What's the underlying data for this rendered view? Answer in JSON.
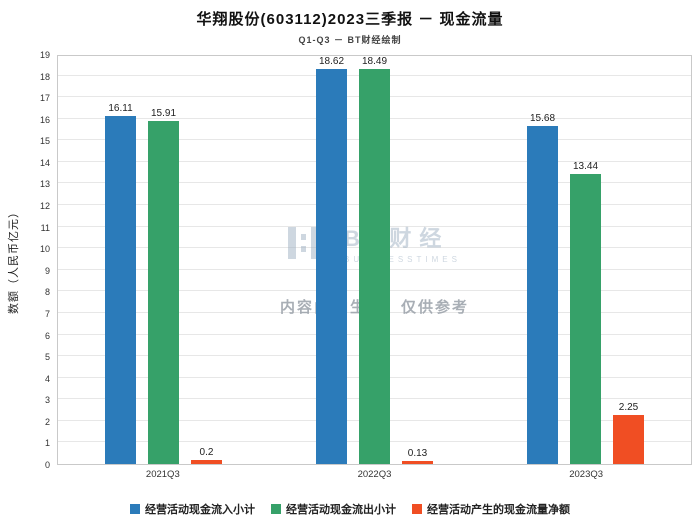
{
  "title": "华翔股份(603112)2023三季报 － 现金流量",
  "subtitle": "Q1-Q3 － BT财经绘制",
  "watermark": {
    "logo_text": "BT财经",
    "logo_sub": "BUSINESSTIMES",
    "disclaimer": "内容由AI生成，仅供参考"
  },
  "chart_data": {
    "type": "bar",
    "categories": [
      "2021Q3",
      "2022Q3",
      "2023Q3"
    ],
    "series": [
      {
        "name": "经营活动现金流入小计",
        "color": "#2b7bba",
        "values": [
          16.11,
          18.62,
          15.68
        ]
      },
      {
        "name": "经营活动现金流出小计",
        "color": "#36a169",
        "values": [
          15.91,
          18.49,
          13.44
        ]
      },
      {
        "name": "经营活动产生的现金流量净额",
        "color": "#f04e23",
        "values": [
          0.2,
          0.13,
          2.25
        ]
      }
    ],
    "title": "华翔股份(603112)2023三季报 － 现金流量",
    "xlabel": "",
    "ylabel": "数额（人民币亿元）",
    "ylim": [
      0,
      19
    ],
    "ytick_step": 1,
    "grid": true,
    "legend_position": "bottom",
    "value_labels": true
  }
}
